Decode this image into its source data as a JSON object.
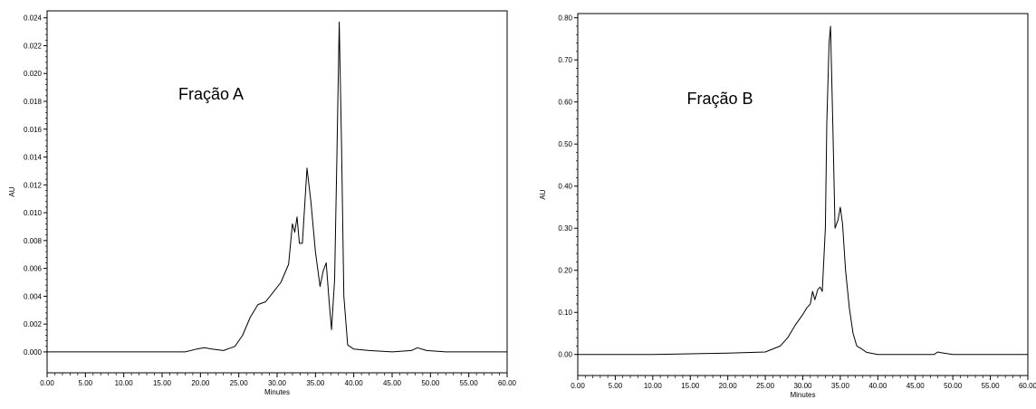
{
  "chart_data": [
    {
      "type": "line",
      "annotation": "Fração A",
      "xlabel": "Minutes",
      "ylabel": "AU",
      "xlim": [
        0,
        60
      ],
      "ylim": [
        -0.0015,
        0.0245
      ],
      "x_ticks": [
        "0.00",
        "5.00",
        "10.00",
        "15.00",
        "20.00",
        "25.00",
        "30.00",
        "35.00",
        "40.00",
        "45.00",
        "50.00",
        "55.00",
        "60.00"
      ],
      "y_ticks": [
        "0.000",
        "0.002",
        "0.004",
        "0.006",
        "0.008",
        "0.010",
        "0.012",
        "0.014",
        "0.016",
        "0.018",
        "0.020",
        "0.022",
        "0.024"
      ],
      "grid": false,
      "series": [
        {
          "x": [
            0,
            5,
            10,
            15,
            18,
            19.5,
            20.5,
            21.5,
            23,
            24.5,
            25.5,
            26.5,
            27.5,
            28.5,
            29.5,
            30.5,
            31.5,
            32,
            32.3,
            32.6,
            32.9,
            33.3,
            33.9,
            34.4,
            35,
            35.6,
            36,
            36.4,
            36.8,
            37.1,
            37.5,
            37.8,
            38.1,
            38.4,
            38.7,
            39.2,
            40,
            42,
            45,
            47.5,
            48.3,
            49.5,
            52,
            55,
            60
          ],
          "y": [
            0,
            0,
            0,
            0,
            0,
            0.0002,
            0.0003,
            0.0002,
            0.0001,
            0.0004,
            0.0012,
            0.0025,
            0.0034,
            0.0036,
            0.0043,
            0.005,
            0.0063,
            0.0092,
            0.0086,
            0.0097,
            0.0078,
            0.0078,
            0.0132,
            0.0108,
            0.0072,
            0.0047,
            0.0058,
            0.0064,
            0.0035,
            0.0016,
            0.0052,
            0.014,
            0.0237,
            0.015,
            0.004,
            0.0005,
            0.0002,
            0.0001,
            0,
            0.0001,
            0.0003,
            0.0001,
            0,
            0,
            0
          ]
        }
      ]
    },
    {
      "type": "line",
      "annotation": "Fração B",
      "xlabel": "Minutes",
      "ylabel": "AU",
      "xlim": [
        0,
        60
      ],
      "ylim": [
        -0.05,
        0.81
      ],
      "x_ticks": [
        "0.00",
        "5.00",
        "10.00",
        "15.00",
        "20.00",
        "25.00",
        "30.00",
        "35.00",
        "40.00",
        "45.00",
        "50.00",
        "55.00",
        "60.00"
      ],
      "y_ticks": [
        "0.00",
        "0.10",
        "0.20",
        "0.30",
        "0.40",
        "0.50",
        "0.60",
        "0.70",
        "0.80"
      ],
      "grid": false,
      "series": [
        {
          "x": [
            0,
            10,
            20,
            25,
            27,
            28,
            29,
            30,
            30.5,
            31,
            31.3,
            31.6,
            32,
            32.3,
            32.6,
            33,
            33.2,
            33.5,
            33.7,
            34,
            34.3,
            34.7,
            35,
            35.3,
            35.7,
            36.2,
            36.7,
            37.2,
            37.7,
            38.5,
            40,
            45,
            47.5,
            48,
            48.5,
            50,
            55,
            60
          ],
          "y": [
            0,
            0,
            0.003,
            0.006,
            0.02,
            0.04,
            0.07,
            0.095,
            0.11,
            0.12,
            0.15,
            0.13,
            0.155,
            0.16,
            0.15,
            0.3,
            0.55,
            0.74,
            0.78,
            0.55,
            0.3,
            0.32,
            0.35,
            0.31,
            0.2,
            0.11,
            0.05,
            0.02,
            0.015,
            0.005,
            0,
            0,
            0,
            0.006,
            0.004,
            0,
            0,
            0
          ]
        }
      ]
    }
  ]
}
